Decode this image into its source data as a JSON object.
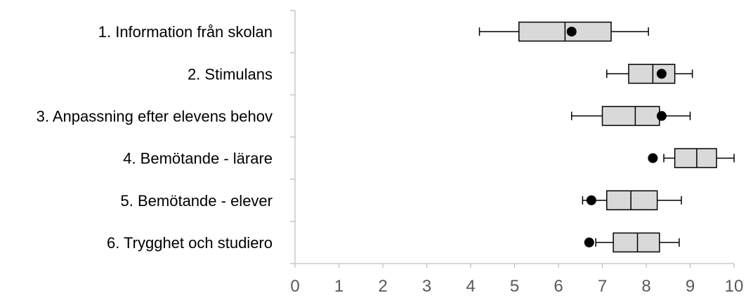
{
  "chart_data": {
    "type": "boxplot",
    "orientation": "horizontal",
    "title": "",
    "xlabel": "",
    "ylabel": "",
    "xlim": [
      0,
      10
    ],
    "x_ticks": [
      "0",
      "1",
      "2",
      "3",
      "4",
      "5",
      "6",
      "7",
      "8",
      "9",
      "10"
    ],
    "grid": false,
    "legend": "none",
    "colors": {
      "box_fill": "#d9d9d9",
      "box_stroke": "#000000",
      "mean_marker": "#000000",
      "axis": "#bfbfbf",
      "tick_text": "#595959"
    },
    "categories": [
      "1. Information från skolan",
      "2. Stimulans",
      "3. Anpassning efter elevens behov",
      "4. Bemötande - lärare",
      "5. Bemötande - elever",
      "6. Trygghet och studiero"
    ],
    "boxes": [
      {
        "min": 4.2,
        "q1": 5.1,
        "median": 6.15,
        "q3": 7.2,
        "max": 8.05,
        "marker": 6.3
      },
      {
        "min": 7.1,
        "q1": 7.6,
        "median": 8.15,
        "q3": 8.65,
        "max": 9.05,
        "marker": 8.35
      },
      {
        "min": 6.3,
        "q1": 7.0,
        "median": 7.75,
        "q3": 8.3,
        "max": 9.0,
        "marker": 8.35
      },
      {
        "min": 8.4,
        "q1": 8.65,
        "median": 9.15,
        "q3": 9.6,
        "max": 10.0,
        "marker": 8.15
      },
      {
        "min": 6.55,
        "q1": 7.1,
        "median": 7.65,
        "q3": 8.25,
        "max": 8.8,
        "marker": 6.75
      },
      {
        "min": 6.85,
        "q1": 7.25,
        "median": 7.8,
        "q3": 8.3,
        "max": 8.75,
        "marker": 6.7
      }
    ]
  }
}
